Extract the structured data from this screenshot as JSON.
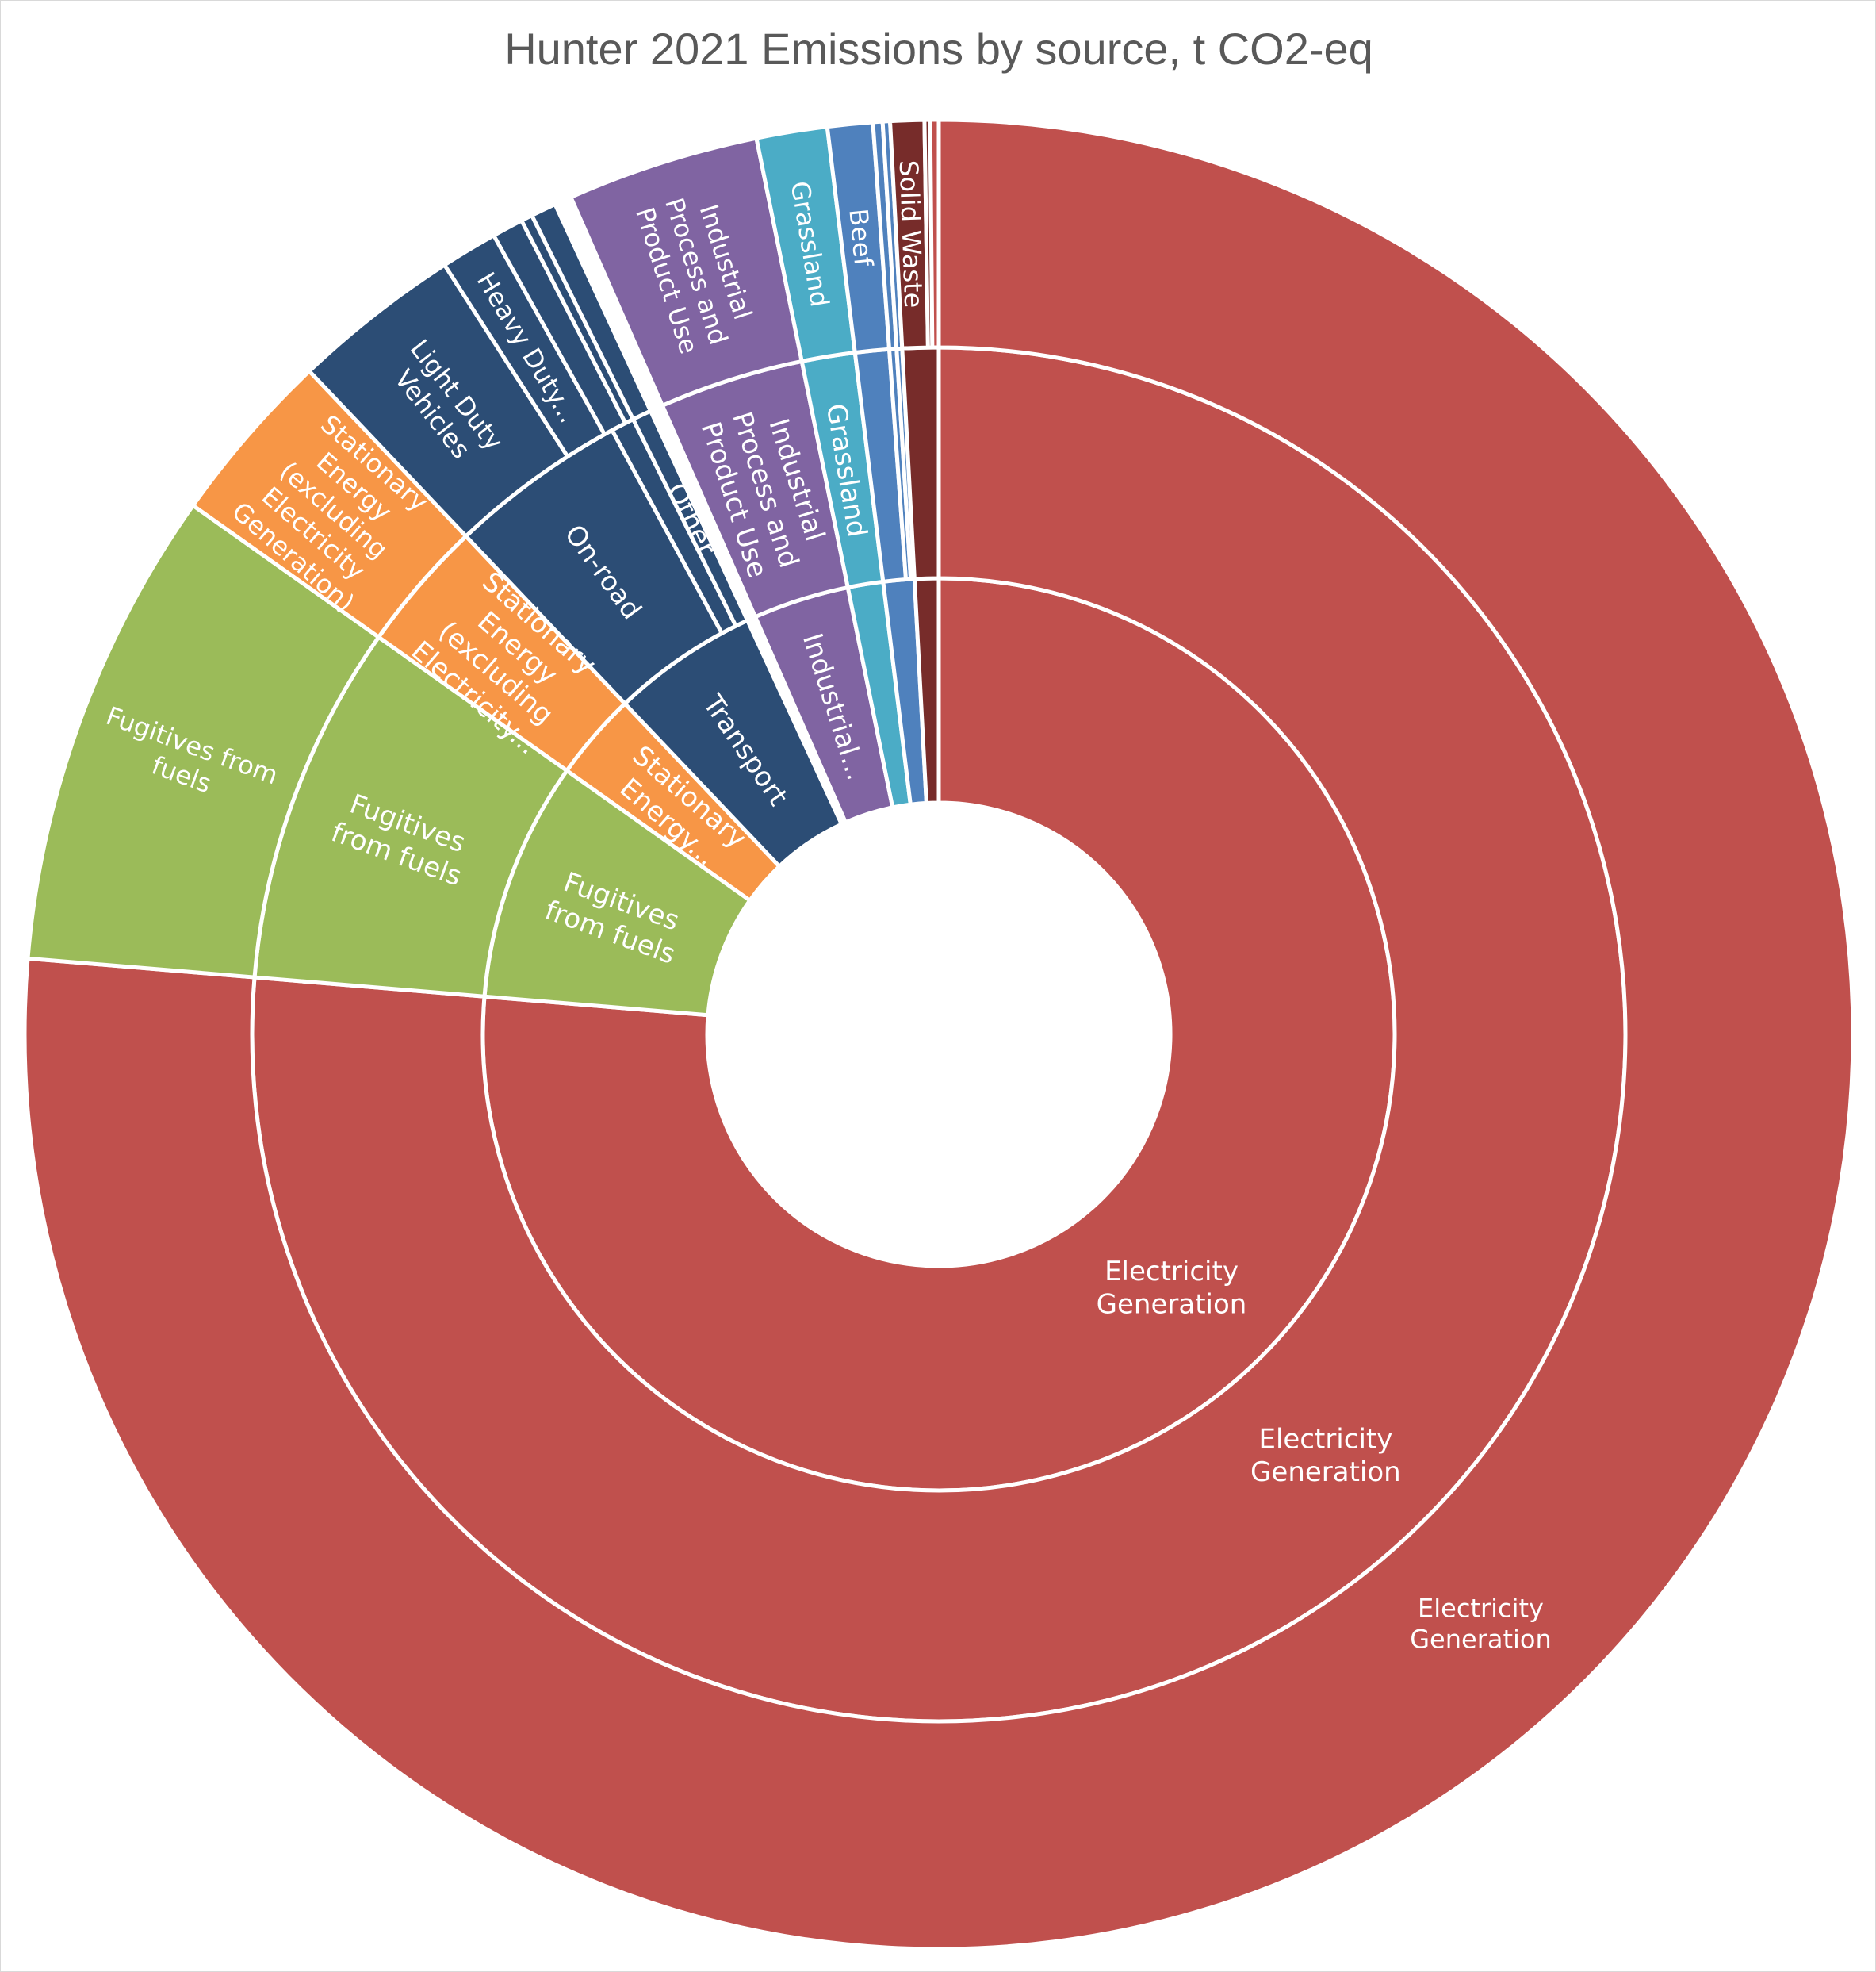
{
  "chart_data": {
    "type": "sunburst",
    "title": "Hunter 2021 Emissions by source, t CO2-eq",
    "units": "t CO2-eq",
    "rings": [
      {
        "level": "inner",
        "segments": [
          {
            "label": "Electricity Generation",
            "value": 76.4,
            "color": "#C0504D"
          },
          {
            "label": "Fugitives from fuels",
            "value": 8.5,
            "color": "#9BBB59"
          },
          {
            "label": "Stationary Energy...",
            "value": 3.1,
            "color": "#F79646"
          },
          {
            "label": "Transport",
            "value": 5.2,
            "color": "#2C4D75"
          },
          {
            "label": "",
            "value": 0.3,
            "color": "#FFFFFF"
          },
          {
            "label": "Industrial...",
            "value": 3.4,
            "color": "#8064A2"
          },
          {
            "label": "",
            "value": 1.25,
            "color": "#4BACC6"
          },
          {
            "label": "",
            "value": 1.1,
            "color": "#4F81BD"
          },
          {
            "label": "",
            "value": 0.85,
            "color": "#772C2A"
          }
        ]
      },
      {
        "level": "middle",
        "segments": [
          {
            "label": "Electricity Generation",
            "value": 76.4,
            "color": "#C0504D"
          },
          {
            "label": "Fugitives from fuels",
            "value": 8.5,
            "color": "#9BBB59"
          },
          {
            "label": "Stationary Energy (excluding Electricity...",
            "value": 3.1,
            "color": "#F79646"
          },
          {
            "label": "On-road",
            "value": 4.2,
            "color": "#2C4D75"
          },
          {
            "label": "",
            "value": 0.55,
            "color": "#2C4D75"
          },
          {
            "label": "Other",
            "value": 0.45,
            "color": "#2C4D75"
          },
          {
            "label": "",
            "value": 0.3,
            "color": "#FFFFFF"
          },
          {
            "label": "Industrial Process and Product Use",
            "value": 3.4,
            "color": "#8064A2"
          },
          {
            "label": "Grassland",
            "value": 1.25,
            "color": "#4BACC6"
          },
          {
            "label": "",
            "value": 0.8,
            "color": "#4F81BD"
          },
          {
            "label": "",
            "value": 0.17,
            "color": "#4F81BD"
          },
          {
            "label": "",
            "value": 0.13,
            "color": "#4F81BD"
          },
          {
            "label": "",
            "value": 0.85,
            "color": "#772C2A"
          }
        ]
      },
      {
        "level": "outer",
        "segments": [
          {
            "label": "Electricity Generation",
            "value": 76.4,
            "color": "#C0504D"
          },
          {
            "label": "Fugitives from fuels",
            "value": 8.5,
            "color": "#9BBB59"
          },
          {
            "label": "Stationary Energy (excluding Electricity Generation)",
            "value": 3.1,
            "color": "#F79646"
          },
          {
            "label": "Light Duty Vehicles",
            "value": 3.0,
            "color": "#2C4D75"
          },
          {
            "label": "Heavy Duty...",
            "value": 1.0,
            "color": "#2C4D75"
          },
          {
            "label": "",
            "value": 0.55,
            "color": "#2C4D75"
          },
          {
            "label": "",
            "value": 0.2,
            "color": "#2C4D75"
          },
          {
            "label": "",
            "value": 0.45,
            "color": "#2C4D75"
          },
          {
            "label": "",
            "value": 0.3,
            "color": "#FFFFFF"
          },
          {
            "label": "Industrial Process and Product Use",
            "value": 3.4,
            "color": "#8064A2"
          },
          {
            "label": "Grassland",
            "value": 1.25,
            "color": "#4BACC6"
          },
          {
            "label": "Beef",
            "value": 0.8,
            "color": "#4F81BD"
          },
          {
            "label": "",
            "value": 0.17,
            "color": "#4F81BD"
          },
          {
            "label": "",
            "value": 0.13,
            "color": "#4F81BD"
          },
          {
            "label": "Solid Waste",
            "value": 0.6,
            "color": "#772C2A"
          },
          {
            "label": "",
            "value": 0.1,
            "color": "#772C2A"
          },
          {
            "label": "",
            "value": 0.15,
            "color": "#C0504D"
          }
        ]
      }
    ]
  }
}
